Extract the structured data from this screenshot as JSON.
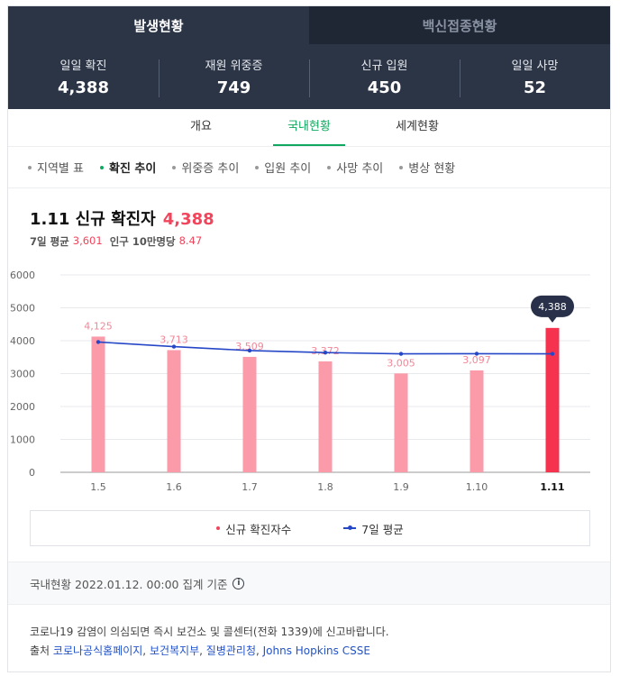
{
  "header": {
    "tabs": [
      {
        "label": "발생현황",
        "active": true
      },
      {
        "label": "백신접종현황",
        "active": false
      }
    ],
    "stats": [
      {
        "label": "일일 확진",
        "value": "4,388"
      },
      {
        "label": "재원 위중증",
        "value": "749"
      },
      {
        "label": "신규 입원",
        "value": "450"
      },
      {
        "label": "일일 사망",
        "value": "52"
      }
    ]
  },
  "subtabs": [
    "개요",
    "국내현황",
    "세계현황"
  ],
  "chips": [
    "지역별 표",
    "확진 추이",
    "위중증 추이",
    "입원 추이",
    "사망 추이",
    "병상 현황"
  ],
  "summary": {
    "title": "1.11 신규 확진자",
    "value": "4,388",
    "avg_label": "7일 평균",
    "avg_value": "3,601",
    "pop_label": "인구 10만명당",
    "pop_value": "8.47"
  },
  "chart_data": {
    "type": "bar",
    "categories": [
      "1.5",
      "1.6",
      "1.7",
      "1.8",
      "1.9",
      "1.10",
      "1.11"
    ],
    "series": [
      {
        "name": "신규 확진자수",
        "values": [
          4125,
          3713,
          3509,
          3372,
          3005,
          3097,
          4388
        ],
        "labels": [
          "4,125",
          "3,713",
          "3,509",
          "3,372",
          "3,005",
          "3,097",
          "4,388"
        ]
      },
      {
        "name": "7일 평균",
        "type": "line",
        "values": [
          3960,
          3820,
          3700,
          3640,
          3600,
          3605,
          3601
        ]
      }
    ],
    "ylim": [
      0,
      6000
    ],
    "yticks": [
      0,
      1000,
      2000,
      3000,
      4000,
      5000,
      6000
    ],
    "highlight_index": 6,
    "grid": true,
    "colors": {
      "bar": "#fb9aa8",
      "bar_highlight": "#f5334f",
      "line": "#2547c7",
      "label": "#f08898",
      "tooltip_bg": "#283149"
    }
  },
  "legend": [
    "신규 확진자수",
    "7일 평균"
  ],
  "reference": "국내현황 2022.01.12. 00:00 집계 기준",
  "notice": "코로나19 감염이 의심되면 즉시 보건소 및 콜센터(전화 1339)에 신고바랍니다.",
  "source": {
    "prefix": "출처",
    "links": [
      "코로나공식홈페이지",
      "보건복지부",
      "질병관리청",
      "Johns Hopkins CSSE"
    ]
  }
}
